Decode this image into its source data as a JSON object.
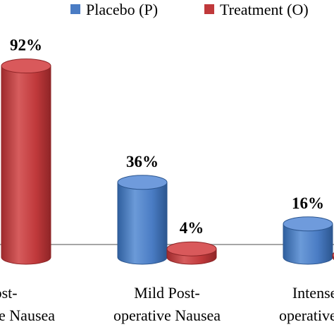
{
  "chart_data": {
    "type": "bar",
    "style": "3d-cylinder",
    "grid": false,
    "legend_position": "top-right",
    "title": "",
    "xlabel": "",
    "ylabel": "",
    "ylim": [
      0,
      100
    ],
    "categories": [
      {
        "line1": "Post-",
        "line2": "operative Nausea"
      },
      {
        "line1": "Mild Post-",
        "line2": "operative Nausea"
      },
      {
        "line1": "Intense Post-",
        "line2": "operative Nausea"
      }
    ],
    "series": [
      {
        "name": "Placebo (P)",
        "color": "#4a7cc4",
        "values": [
          null,
          36,
          16
        ],
        "labels": [
          "",
          "36%",
          "16%"
        ]
      },
      {
        "name": "Treatment (O)",
        "color": "#c0393b",
        "values": [
          92,
          4,
          1
        ],
        "labels": [
          "92%",
          "4%",
          ""
        ]
      }
    ]
  }
}
